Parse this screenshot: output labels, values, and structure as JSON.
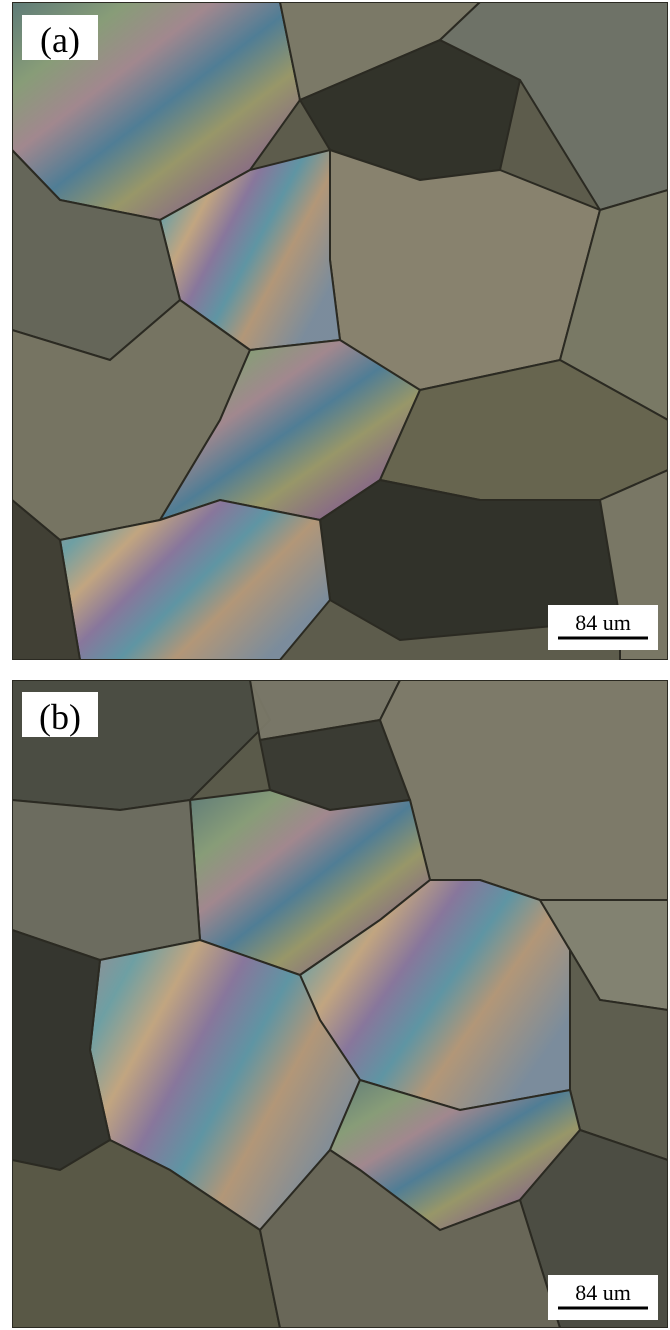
{
  "panels": [
    {
      "label": "(a)",
      "scale_bar": "84 um"
    },
    {
      "label": "(b)",
      "scale_bar": "84 um"
    }
  ]
}
